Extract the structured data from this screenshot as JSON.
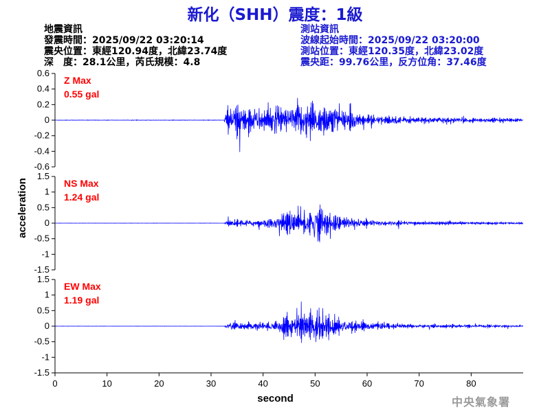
{
  "title": "新化（SHH）震度：1級",
  "earthquake_info": {
    "heading": "地震資訊",
    "origin_time": "發震時間：2025/09/22 03:20:14",
    "epicenter": "震央位置：東經120.94度，北緯23.74度",
    "depth_magnitude": "深　度：28.1公里，芮氏規模：4.8"
  },
  "station_info": {
    "heading": "測站資訊",
    "start_time": "波線起始時間：2025/09/22 03:20:00",
    "location": "測站位置：東經120.35度，北緯23.02度",
    "distance": "震央距：99.76公里，反方位角：37.46度"
  },
  "watermark": "中央氣象署",
  "colors": {
    "title": "#1a1ad0",
    "trace": "#0000ff",
    "max_label": "#ff0000"
  },
  "chart_data": {
    "type": "line",
    "xlabel": "second",
    "ylabel": "acceleration",
    "xlim": [
      0,
      90
    ],
    "xticks": [
      0,
      10,
      20,
      30,
      40,
      50,
      60,
      70,
      80
    ],
    "grid": false,
    "panels": [
      {
        "name": "Z",
        "max_label": "Z Max",
        "max_value": "0.55 gal",
        "ylim": [
          -0.6,
          0.6
        ],
        "yticks": [
          0.6,
          0.4,
          0.2,
          0,
          -0.2,
          -0.4,
          -0.6
        ],
        "ytick_labels": [
          "0.6",
          "0.4",
          "0.2",
          "0",
          "-0.2",
          "-0.4",
          "-0.6"
        ],
        "envelope": {
          "x": [
            0,
            32.5,
            33,
            34,
            36,
            38,
            40,
            42,
            44,
            46,
            47,
            48,
            50,
            52,
            54,
            56,
            58,
            60,
            62,
            65,
            70,
            75,
            80,
            85,
            90
          ],
          "amp": [
            0.005,
            0.005,
            0.3,
            0.42,
            0.35,
            0.3,
            0.3,
            0.36,
            0.3,
            0.4,
            0.5,
            0.45,
            0.5,
            0.4,
            0.35,
            0.25,
            0.18,
            0.14,
            0.12,
            0.1,
            0.08,
            0.07,
            0.06,
            0.05,
            0.04
          ]
        }
      },
      {
        "name": "NS",
        "max_label": "NS Max",
        "max_value": "1.24 gal",
        "ylim": [
          -1.5,
          1.5
        ],
        "yticks": [
          1.5,
          1,
          0.5,
          0,
          -0.5,
          -1,
          -1.5
        ],
        "ytick_labels": [
          "1.5",
          "1",
          "0.5",
          "0",
          "-0.5",
          "-1",
          "-1.5"
        ],
        "envelope": {
          "x": [
            0,
            32.5,
            33,
            34,
            36,
            38,
            40,
            42,
            44,
            46,
            47,
            48,
            50,
            52,
            54,
            56,
            58,
            60,
            62,
            65,
            70,
            75,
            80,
            85,
            90
          ],
          "amp": [
            0.005,
            0.005,
            0.15,
            0.22,
            0.2,
            0.2,
            0.25,
            0.35,
            0.5,
            0.7,
            0.8,
            0.9,
            1.1,
            0.8,
            0.6,
            0.4,
            0.3,
            0.25,
            0.2,
            0.15,
            0.12,
            0.1,
            0.08,
            0.07,
            0.06
          ]
        }
      },
      {
        "name": "EW",
        "max_label": "EW Max",
        "max_value": "1.19 gal",
        "ylim": [
          -1.5,
          1.5
        ],
        "yticks": [
          1.5,
          1,
          0.5,
          0,
          -0.5,
          -1,
          -1.5
        ],
        "ytick_labels": [
          "1.5",
          "1",
          "0.5",
          "0",
          "-0.5",
          "-1",
          "-1.5"
        ],
        "envelope": {
          "x": [
            0,
            32.5,
            33,
            34,
            36,
            38,
            40,
            42,
            44,
            46,
            47,
            48,
            50,
            52,
            54,
            56,
            58,
            60,
            62,
            65,
            70,
            75,
            80,
            85,
            90
          ],
          "amp": [
            0.005,
            0.005,
            0.15,
            0.25,
            0.22,
            0.2,
            0.25,
            0.4,
            0.6,
            0.8,
            0.95,
            1.0,
            1.1,
            0.75,
            0.55,
            0.4,
            0.3,
            0.25,
            0.2,
            0.15,
            0.12,
            0.1,
            0.08,
            0.07,
            0.06
          ]
        }
      }
    ]
  }
}
